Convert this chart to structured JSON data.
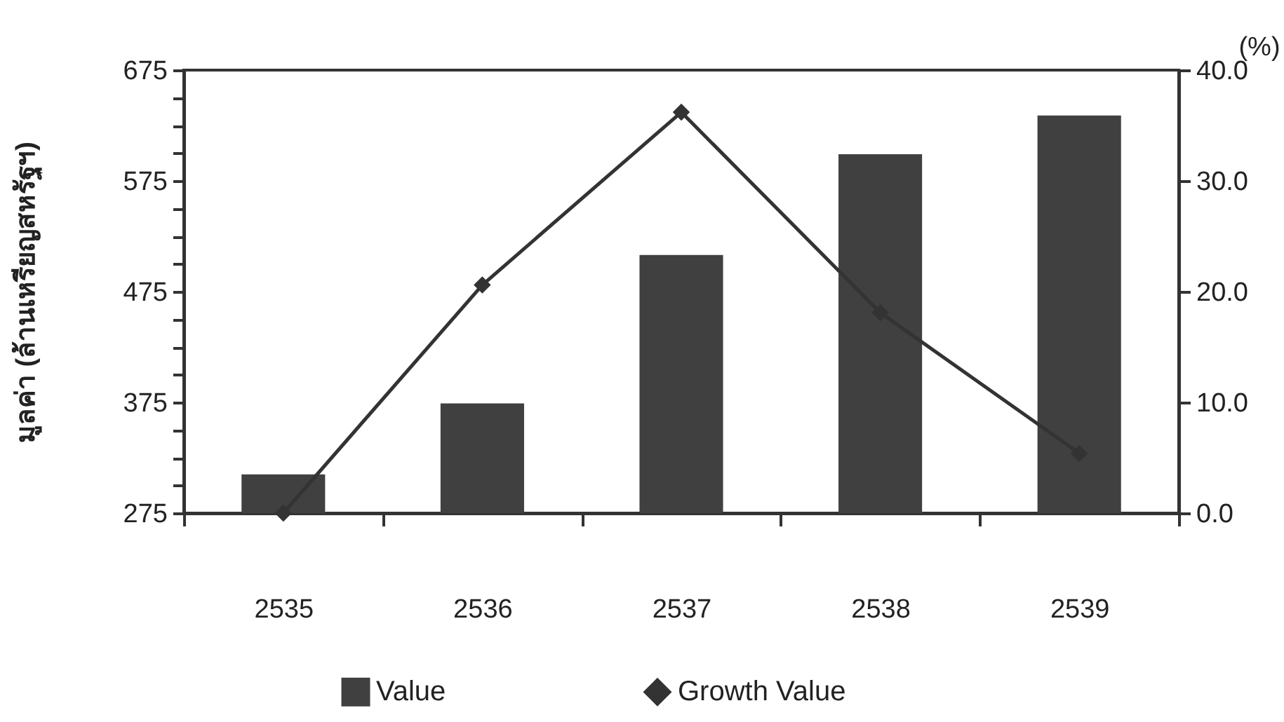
{
  "chart_data": {
    "type": "bar",
    "categories": [
      "2535",
      "2536",
      "2537",
      "2538",
      "2539"
    ],
    "ylabel": "มูลค่า (ล้านเหรียญสหรัฐฯ)",
    "y2label": "(%)",
    "ylim": [
      275,
      675
    ],
    "yticks": [
      275,
      {
        "value": 300,
        "label": null
      },
      {
        "value": 325,
        "label": null
      },
      {
        "value": 350,
        "label": null
      },
      375,
      {
        "value": 400,
        "label": null
      },
      {
        "value": 425,
        "label": null
      },
      {
        "value": 450,
        "label": null
      },
      475,
      {
        "value": 500,
        "label": null
      },
      {
        "value": 525,
        "label": null
      },
      {
        "value": 550,
        "label": null
      },
      575,
      {
        "value": 600,
        "label": null
      },
      {
        "value": 625,
        "label": null
      },
      {
        "value": 650,
        "label": null
      },
      675
    ],
    "y2lim": [
      0,
      40
    ],
    "y2ticks": [
      {
        "value": 0,
        "label": "0.0"
      },
      {
        "value": 2.5,
        "label": null
      },
      {
        "value": 5,
        "label": null
      },
      {
        "value": 7.5,
        "label": null
      },
      {
        "value": 10,
        "label": "10.0"
      },
      {
        "value": 12.5,
        "label": null
      },
      {
        "value": 15,
        "label": null
      },
      {
        "value": 17.5,
        "label": null
      },
      {
        "value": 20,
        "label": "20.0"
      },
      {
        "value": 22.5,
        "label": null
      },
      {
        "value": 25,
        "label": null
      },
      {
        "value": 27.5,
        "label": null
      },
      {
        "value": 30,
        "label": "30.0"
      },
      {
        "value": 32.5,
        "label": null
      },
      {
        "value": 35,
        "label": null
      },
      {
        "value": 37.5,
        "label": null
      },
      {
        "value": 40,
        "label": "40.0"
      }
    ],
    "series": [
      {
        "name": "Value",
        "color": "#404040",
        "values": [
          310,
          374,
          508,
          599,
          634
        ]
      },
      {
        "name": "Growth Value",
        "type": "line",
        "axis": "y2",
        "color": "#333333",
        "marker": "diamond",
        "values": [
          0.0,
          20.6,
          36.2,
          18.1,
          5.4
        ]
      }
    ],
    "legend": "bottom"
  }
}
